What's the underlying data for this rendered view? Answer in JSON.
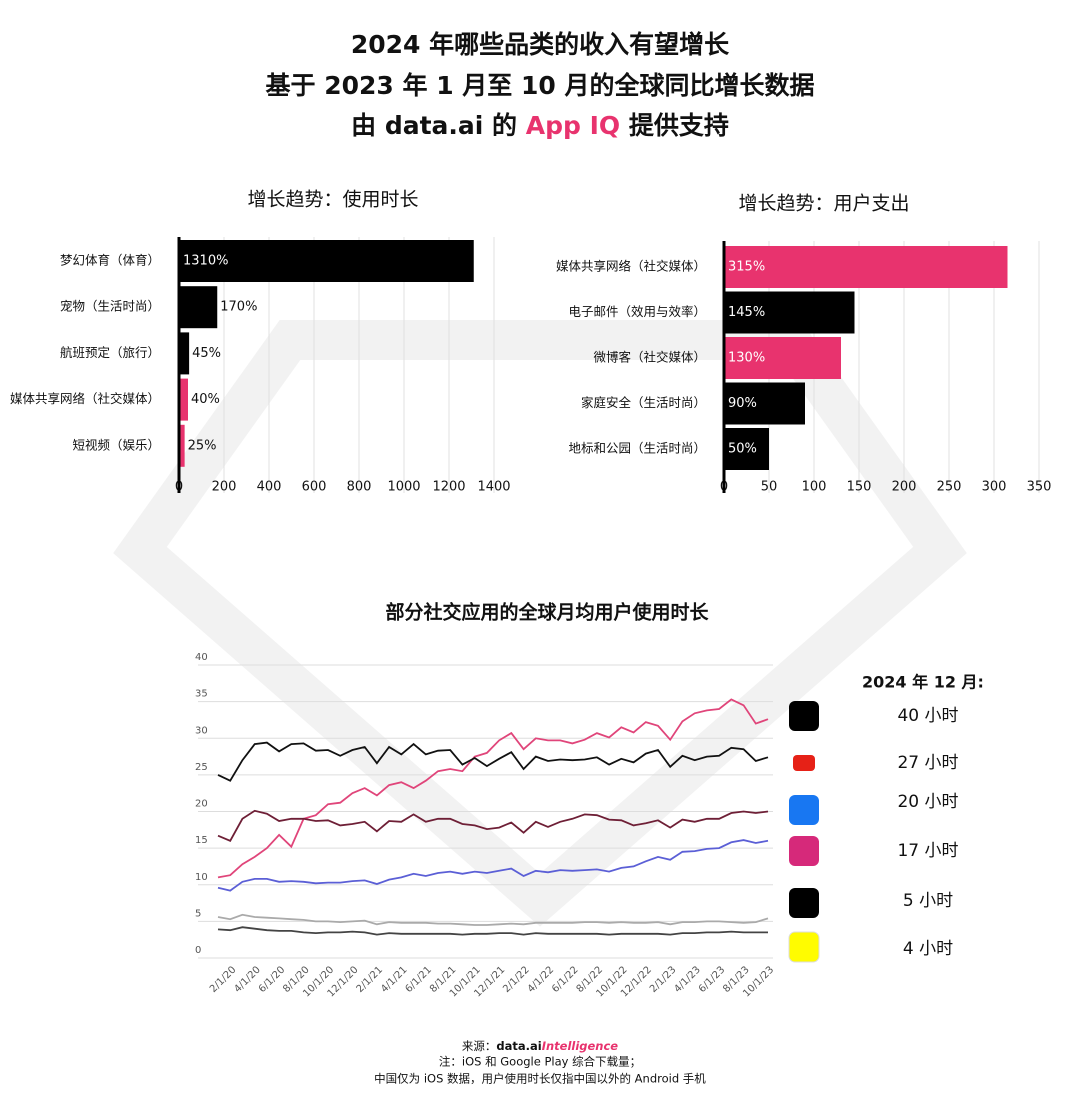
{
  "header": {
    "line1": "2024 年哪些品类的收入有望增长",
    "line2": "基于 2023 年 1 月至 10 月的全球同比增长数据",
    "line3_a": "由 ",
    "line3_brand": "data.ai",
    "line3_b": " 的 ",
    "line3_product": "App IQ",
    "line3_c": " 提供支持"
  },
  "chart_data": [
    {
      "type": "hbar",
      "title": "增长趋势：使用时长",
      "categories": [
        "梦幻体育（体育）",
        "宠物（生活时尚）",
        "航班预定（旅行）",
        "媒体共享网络（社交媒体）",
        "短视频（娱乐）"
      ],
      "values": [
        1310,
        170,
        45,
        40,
        25
      ],
      "value_labels": [
        "1310%",
        "170%",
        "45%",
        "40%",
        "25%"
      ],
      "colors": [
        "#000000",
        "#000000",
        "#000000",
        "#e8336e",
        "#e8336e"
      ],
      "xlim": [
        0,
        1400
      ],
      "xticks": [
        0,
        200,
        400,
        600,
        800,
        1000,
        1200,
        1400
      ],
      "grid": true
    },
    {
      "type": "hbar",
      "title": "增长趋势：用户支出",
      "categories": [
        "媒体共享网络（社交媒体）",
        "电子邮件（效用与效率）",
        "微博客（社交媒体）",
        "家庭安全（生活时尚）",
        "地标和公园（生活时尚）"
      ],
      "values": [
        315,
        145,
        130,
        90,
        50
      ],
      "value_labels": [
        "315%",
        "145%",
        "130%",
        "90%",
        "50%"
      ],
      "colors": [
        "#e8336e",
        "#000000",
        "#e8336e",
        "#000000",
        "#000000"
      ],
      "xlim": [
        0,
        350
      ],
      "xticks": [
        0,
        50,
        100,
        150,
        200,
        250,
        300,
        350
      ],
      "grid": true
    },
    {
      "type": "line",
      "title": "部分社交应用的全球月均用户使用时长",
      "categories": [
        null,
        "2/1/20",
        null,
        "4/1/20",
        null,
        "6/1/20",
        null,
        "8/1/20",
        null,
        "10/1/20",
        null,
        "12/1/20",
        null,
        "2/1/21",
        null,
        "4/1/21",
        null,
        "6/1/21",
        null,
        "8/1/21",
        null,
        "10/1/21",
        null,
        "12/1/21",
        null,
        "2/1/22",
        null,
        "4/1/22",
        null,
        "6/1/22",
        null,
        "8/1/22",
        null,
        "10/1/22",
        null,
        "12/1/22",
        null,
        "2/1/23",
        null,
        "4/1/23",
        null,
        "6/1/23",
        null,
        "8/1/23",
        null,
        "10/1/23"
      ],
      "ylim": [
        0,
        40
      ],
      "yticks": [
        0,
        5,
        10,
        15,
        20,
        25,
        30,
        35,
        40
      ],
      "grid": true,
      "series": [
        {
          "color": "#e0457a",
          "values": [
            11,
            11.3,
            12.8,
            13.8,
            15,
            16.8,
            15.2,
            19,
            19.5,
            21,
            21.2,
            22.5,
            23.2,
            22.2,
            23.6,
            24,
            23.2,
            24.2,
            25.5,
            25.8,
            25.5,
            27.5,
            28,
            29.7,
            30.7,
            28.5,
            30,
            29.7,
            29.7,
            29.3,
            29.8,
            30.7,
            30.1,
            31.5,
            30.8,
            32.2,
            31.7,
            29.8,
            32.3,
            33.4,
            33.8,
            34,
            35.3,
            34.5,
            32,
            32.6
          ]
        },
        {
          "color": "#111111",
          "values": [
            25,
            24.2,
            27,
            29.2,
            29.4,
            28.2,
            29.2,
            29.3,
            28.3,
            28.4,
            27.6,
            28.4,
            28.8,
            26.6,
            28.8,
            27.8,
            29.2,
            27.8,
            28.3,
            28.4,
            26.4,
            27.3,
            26.2,
            27.2,
            28.1,
            25.8,
            27.5,
            26.9,
            27.1,
            27.0,
            27.1,
            27.4,
            26.4,
            27.2,
            26.7,
            27.9,
            28.4,
            26.1,
            27.6,
            27.0,
            27.5,
            27.6,
            28.7,
            28.5,
            26.9,
            27.4
          ]
        },
        {
          "color": "#6e1f36",
          "values": [
            16.7,
            16.0,
            19.0,
            20.1,
            19.7,
            18.7,
            19.0,
            19.0,
            18.7,
            18.8,
            18.1,
            18.3,
            18.6,
            17.3,
            18.7,
            18.6,
            19.6,
            18.6,
            19.0,
            19.0,
            18.3,
            18.1,
            17.6,
            17.8,
            18.5,
            17.1,
            18.6,
            17.9,
            18.6,
            19.0,
            19.6,
            19.5,
            18.9,
            18.8,
            18.1,
            18.4,
            18.8,
            17.8,
            18.9,
            18.6,
            19.0,
            19.0,
            19.8,
            20.0,
            19.8,
            20.0
          ]
        },
        {
          "color": "#5b5fd6",
          "values": [
            9.6,
            9.2,
            10.4,
            10.8,
            10.8,
            10.4,
            10.5,
            10.4,
            10.2,
            10.3,
            10.3,
            10.5,
            10.6,
            10.1,
            10.7,
            11.0,
            11.5,
            11.2,
            11.6,
            11.8,
            11.5,
            11.8,
            11.6,
            11.9,
            12.2,
            11.2,
            11.9,
            11.7,
            12.0,
            11.9,
            12.0,
            12.1,
            11.8,
            12.3,
            12.5,
            13.2,
            13.8,
            13.4,
            14.5,
            14.6,
            14.9,
            15.0,
            15.8,
            16.1,
            15.7,
            16.0
          ]
        },
        {
          "color": "#aaaaaa",
          "values": [
            5.6,
            5.3,
            5.9,
            5.6,
            5.5,
            5.4,
            5.3,
            5.2,
            5.0,
            5.0,
            4.9,
            5.0,
            5.1,
            4.6,
            4.9,
            4.8,
            4.8,
            4.8,
            4.7,
            4.7,
            4.6,
            4.5,
            4.5,
            4.6,
            4.7,
            4.6,
            4.8,
            4.8,
            4.8,
            4.8,
            4.9,
            4.9,
            4.8,
            4.9,
            4.8,
            4.8,
            4.9,
            4.6,
            4.9,
            4.9,
            5.0,
            5.0,
            4.9,
            4.8,
            4.9,
            5.4
          ]
        },
        {
          "color": "#444444",
          "values": [
            3.9,
            3.8,
            4.2,
            4.0,
            3.8,
            3.7,
            3.7,
            3.5,
            3.4,
            3.5,
            3.5,
            3.6,
            3.5,
            3.2,
            3.4,
            3.3,
            3.3,
            3.3,
            3.3,
            3.3,
            3.2,
            3.3,
            3.3,
            3.4,
            3.4,
            3.2,
            3.4,
            3.3,
            3.3,
            3.3,
            3.3,
            3.3,
            3.2,
            3.3,
            3.3,
            3.3,
            3.3,
            3.2,
            3.4,
            3.4,
            3.5,
            3.5,
            3.6,
            3.5,
            3.5,
            3.5
          ]
        }
      ]
    }
  ],
  "dec_2024": {
    "title": "2024 年 12 月:",
    "items": [
      "40 小时",
      "27 小时",
      "20 小时",
      "17 小时",
      "5 小时",
      "4 小时"
    ]
  },
  "footer": {
    "line1_a": "来源：",
    "line1_brand": "data.ai",
    "line1_product": "Intelligence",
    "line2": "注：iOS 和 Google Play 综合下载量；",
    "line3": "中国仅为 iOS 数据，用户使用时长仅指中国以外的 Android 手机"
  }
}
